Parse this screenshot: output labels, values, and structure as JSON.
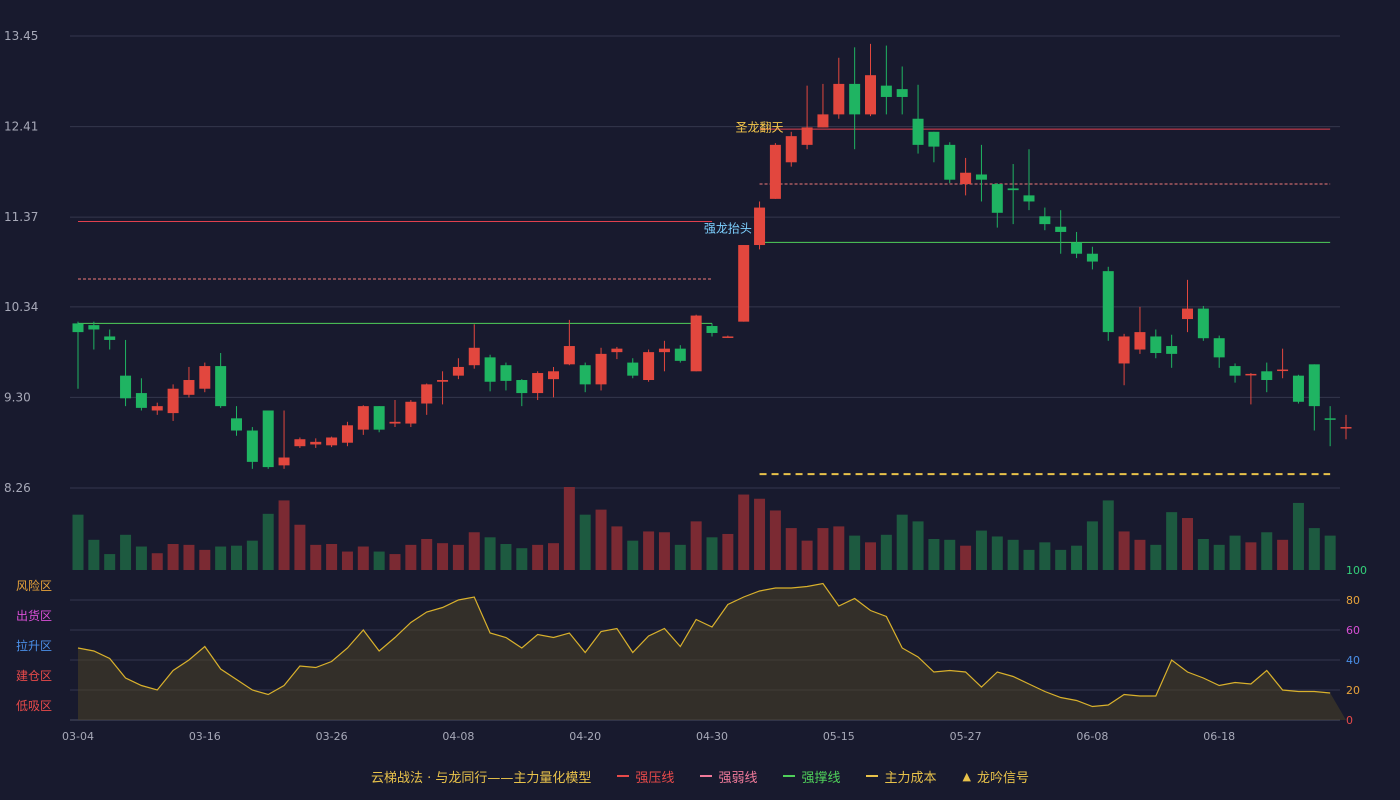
{
  "chart_data": {
    "type": "candlestick",
    "price_axis": {
      "ylim": [
        8.26,
        13.45
      ],
      "ticks": [
        "13.45",
        "12.41",
        "11.37",
        "10.34",
        "9.30",
        "8.26"
      ]
    },
    "x_ticks": [
      {
        "index": 0,
        "label": "03-04"
      },
      {
        "index": 8,
        "label": "03-16"
      },
      {
        "index": 16,
        "label": "03-26"
      },
      {
        "index": 24,
        "label": "04-08"
      },
      {
        "index": 32,
        "label": "04-20"
      },
      {
        "index": 40,
        "label": "04-30"
      },
      {
        "index": 48,
        "label": "05-15"
      },
      {
        "index": 56,
        "label": "05-27"
      },
      {
        "index": 64,
        "label": "06-08"
      },
      {
        "index": 72,
        "label": "06-18"
      }
    ],
    "ohlc": [
      [
        10.15,
        10.05,
        10.17,
        9.4
      ],
      [
        10.13,
        10.08,
        10.17,
        9.85
      ],
      [
        10.0,
        9.96,
        10.08,
        9.85
      ],
      [
        9.55,
        9.29,
        9.96,
        9.2
      ],
      [
        9.35,
        9.18,
        9.52,
        9.15
      ],
      [
        9.15,
        9.2,
        9.24,
        9.1
      ],
      [
        9.12,
        9.4,
        9.45,
        9.03
      ],
      [
        9.33,
        9.5,
        9.65,
        9.3
      ],
      [
        9.4,
        9.66,
        9.7,
        9.36
      ],
      [
        9.66,
        9.2,
        9.81,
        9.18
      ],
      [
        9.06,
        8.92,
        9.2,
        8.86
      ],
      [
        8.92,
        8.56,
        8.96,
        8.48
      ],
      [
        9.15,
        8.5,
        9.15,
        8.48
      ],
      [
        8.52,
        8.61,
        9.15,
        8.48
      ],
      [
        8.74,
        8.82,
        8.84,
        8.72
      ],
      [
        8.76,
        8.79,
        8.83,
        8.72
      ],
      [
        8.75,
        8.84,
        8.85,
        8.73
      ],
      [
        8.78,
        8.98,
        9.02,
        8.74
      ],
      [
        8.93,
        9.2,
        9.21,
        8.87
      ],
      [
        9.2,
        8.93,
        9.2,
        8.9
      ],
      [
        9.0,
        9.02,
        9.27,
        8.96
      ],
      [
        9.0,
        9.25,
        9.27,
        8.96
      ],
      [
        9.23,
        9.45,
        9.46,
        9.1
      ],
      [
        9.48,
        9.5,
        9.6,
        9.22
      ],
      [
        9.55,
        9.65,
        9.75,
        9.51
      ],
      [
        9.67,
        9.87,
        10.14,
        9.63
      ],
      [
        9.76,
        9.48,
        9.79,
        9.37
      ],
      [
        9.67,
        9.49,
        9.7,
        9.38
      ],
      [
        9.5,
        9.35,
        9.51,
        9.2
      ],
      [
        9.35,
        9.58,
        9.6,
        9.27
      ],
      [
        9.51,
        9.6,
        9.65,
        9.3
      ],
      [
        9.68,
        9.89,
        10.19,
        9.67
      ],
      [
        9.67,
        9.45,
        9.7,
        9.36
      ],
      [
        9.45,
        9.8,
        9.87,
        9.38
      ],
      [
        9.82,
        9.86,
        9.88,
        9.74
      ],
      [
        9.7,
        9.55,
        9.75,
        9.52
      ],
      [
        9.5,
        9.82,
        9.85,
        9.48
      ],
      [
        9.82,
        9.86,
        9.95,
        9.6
      ],
      [
        9.86,
        9.72,
        9.9,
        9.7
      ],
      [
        9.6,
        10.24,
        10.25,
        9.6
      ],
      [
        10.12,
        10.04,
        10.15,
        10.0
      ],
      [
        10.0,
        10.0,
        10.01,
        9.99
      ],
      [
        10.17,
        11.05,
        11.05,
        10.17
      ],
      [
        11.05,
        11.48,
        11.55,
        11.0
      ],
      [
        11.58,
        12.2,
        12.22,
        11.58
      ],
      [
        12.0,
        12.3,
        12.35,
        11.95
      ],
      [
        12.2,
        12.4,
        12.88,
        12.15
      ],
      [
        12.4,
        12.55,
        12.9,
        12.4
      ],
      [
        12.55,
        12.9,
        13.2,
        12.5
      ],
      [
        12.9,
        12.55,
        13.32,
        12.15
      ],
      [
        12.55,
        13.0,
        13.36,
        12.53
      ],
      [
        12.88,
        12.75,
        13.34,
        12.55
      ],
      [
        12.84,
        12.75,
        13.1,
        12.55
      ],
      [
        12.5,
        12.2,
        12.89,
        12.1
      ],
      [
        12.35,
        12.18,
        12.35,
        12.0
      ],
      [
        12.2,
        11.8,
        12.23,
        11.76
      ],
      [
        11.75,
        11.88,
        12.05,
        11.62
      ],
      [
        11.86,
        11.8,
        12.2,
        11.55
      ],
      [
        11.75,
        11.42,
        11.76,
        11.25
      ],
      [
        11.7,
        11.68,
        11.98,
        11.29
      ],
      [
        11.62,
        11.55,
        12.15,
        11.45
      ],
      [
        11.38,
        11.29,
        11.48,
        11.22
      ],
      [
        11.26,
        11.2,
        11.45,
        10.95
      ],
      [
        11.08,
        10.95,
        11.2,
        10.9
      ],
      [
        10.95,
        10.86,
        11.03,
        10.77
      ],
      [
        10.75,
        10.05,
        10.8,
        9.95
      ],
      [
        9.69,
        10.0,
        10.03,
        9.44
      ],
      [
        9.85,
        10.05,
        10.34,
        9.8
      ],
      [
        10.0,
        9.81,
        10.08,
        9.75
      ],
      [
        9.89,
        9.8,
        10.02,
        9.64
      ],
      [
        10.2,
        10.32,
        10.65,
        10.05
      ],
      [
        10.32,
        9.98,
        10.35,
        9.95
      ],
      [
        9.98,
        9.76,
        10.01,
        9.64
      ],
      [
        9.66,
        9.55,
        9.69,
        9.47
      ],
      [
        9.56,
        9.57,
        9.58,
        9.22
      ],
      [
        9.6,
        9.5,
        9.7,
        9.36
      ],
      [
        9.62,
        9.62,
        9.86,
        9.52
      ],
      [
        9.55,
        9.25,
        9.56,
        9.23
      ],
      [
        9.68,
        9.2,
        9.68,
        8.92
      ],
      [
        9.06,
        9.05,
        9.2,
        8.74
      ],
      [
        8.95,
        8.96,
        9.1,
        8.82
      ]
    ],
    "volume": [
      0.66,
      0.36,
      0.19,
      0.42,
      0.28,
      0.2,
      0.31,
      0.3,
      0.24,
      0.28,
      0.29,
      0.35,
      0.67,
      0.83,
      0.54,
      0.3,
      0.31,
      0.22,
      0.28,
      0.22,
      0.19,
      0.3,
      0.37,
      0.32,
      0.3,
      0.45,
      0.39,
      0.31,
      0.26,
      0.3,
      0.32,
      0.99,
      0.66,
      0.72,
      0.52,
      0.35,
      0.46,
      0.45,
      0.3,
      0.58,
      0.39,
      0.43,
      0.9,
      0.85,
      0.71,
      0.5,
      0.35,
      0.5,
      0.52,
      0.41,
      0.33,
      0.42,
      0.66,
      0.58,
      0.37,
      0.36,
      0.29,
      0.47,
      0.4,
      0.36,
      0.24,
      0.33,
      0.24,
      0.29,
      0.58,
      0.83,
      0.46,
      0.36,
      0.3,
      0.69,
      0.62,
      0.37,
      0.3,
      0.41,
      0.33,
      0.45,
      0.36,
      0.8,
      0.5,
      0.41
    ],
    "indicator": {
      "ylim": [
        0,
        100
      ],
      "ticks": [
        "100",
        "80",
        "60",
        "40",
        "20",
        "0"
      ],
      "zones": [
        "风险区",
        "出货区",
        "拉升区",
        "建仓区",
        "低吸区"
      ],
      "values": [
        48,
        46,
        41,
        28,
        23,
        20,
        33,
        40,
        49,
        34,
        27,
        20,
        17,
        23,
        36,
        35,
        39,
        48,
        60,
        46,
        55,
        65,
        72,
        75,
        80,
        82,
        58,
        55,
        48,
        57,
        55,
        58,
        45,
        59,
        61,
        45,
        56,
        61,
        49,
        67,
        62,
        77,
        82,
        86,
        88,
        88,
        89,
        91,
        76,
        81,
        73,
        69,
        48,
        42,
        32,
        33,
        32,
        22,
        32,
        29,
        24,
        19,
        15,
        13,
        9,
        10,
        17,
        16,
        16,
        40,
        32,
        28,
        23,
        25,
        24,
        33,
        20,
        19,
        19,
        18
      ]
    },
    "levels": [
      {
        "name": "强压线",
        "style": "solid",
        "color": "#e0404e",
        "value": 11.32,
        "from": 0,
        "to": 40
      },
      {
        "name": "强弱线",
        "style": "dashed",
        "color": "#f07a7a",
        "value": 10.66,
        "from": 0,
        "to": 40
      },
      {
        "name": "强撑线",
        "style": "solid",
        "color": "#4fd05a",
        "value": 10.15,
        "from": 0,
        "to": 40
      },
      {
        "name": "强压线",
        "style": "solid",
        "color": "#e0404e",
        "value": 12.38,
        "from": 43,
        "to": 79
      },
      {
        "name": "强弱线",
        "style": "dashed",
        "color": "#f07a7a",
        "value": 11.75,
        "from": 43,
        "to": 79
      },
      {
        "name": "强撑线",
        "style": "solid",
        "color": "#4fd05a",
        "value": 11.08,
        "from": 43,
        "to": 79
      },
      {
        "name": "主力成本",
        "style": "dashed",
        "color": "#e8c24a",
        "value": 8.42,
        "from": 43,
        "to": 79
      }
    ],
    "annotations": [
      {
        "text": "圣龙翻天",
        "index": 43,
        "value": 12.41,
        "color": "#f3c64a"
      },
      {
        "text": "强龙抬头",
        "index": 41,
        "value": 11.25,
        "color": "#7dd0ff"
      }
    ],
    "legend": [
      {
        "label": "云梯战法 · 与龙同行——主力量化模型",
        "type": "text",
        "color": "#e8c24a"
      },
      {
        "label": "强压线",
        "type": "solid",
        "color": "#e84a4a"
      },
      {
        "label": "强弱线",
        "type": "dashed",
        "color": "#f07a9a"
      },
      {
        "label": "强撑线",
        "type": "solid",
        "color": "#4fd05a"
      },
      {
        "label": "主力成本",
        "type": "dashed",
        "color": "#e8c24a"
      },
      {
        "label": "龙吟信号",
        "type": "triangle",
        "color": "#e8c24a"
      }
    ],
    "colors": {
      "up": "#e2473e",
      "down": "#1fb462",
      "volume_up": "#7b2a33",
      "volume_down": "#1d5a40"
    }
  }
}
